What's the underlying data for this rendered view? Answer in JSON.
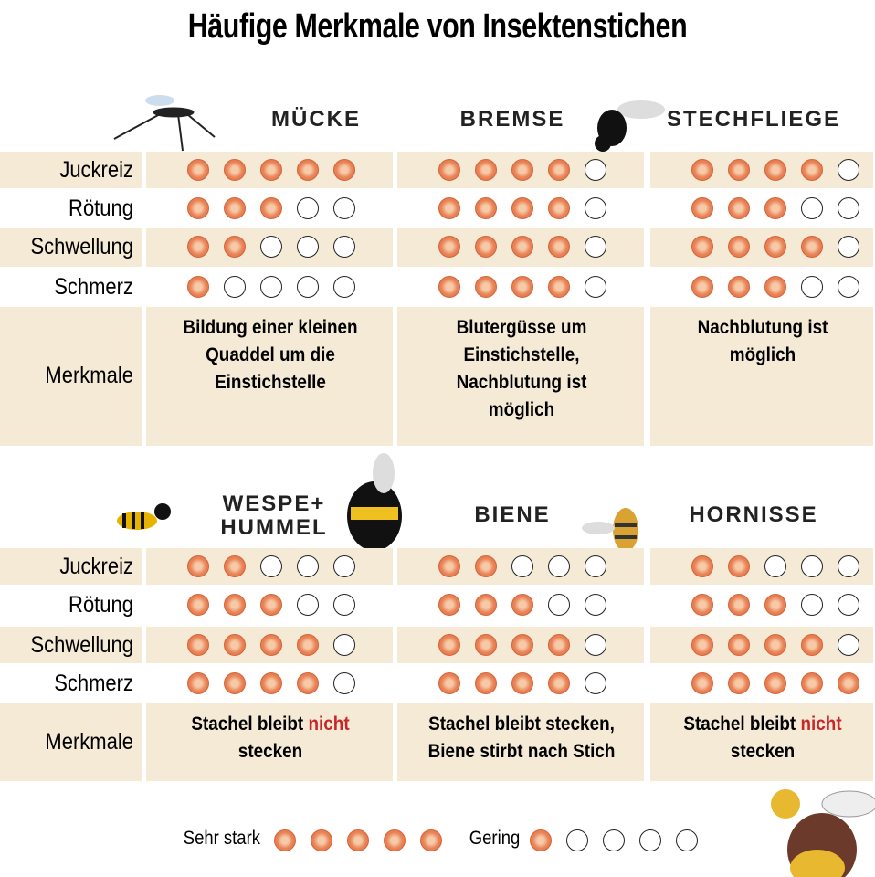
{
  "title": "Häufige Merkmale von Insektenstichen",
  "sections": [
    {
      "insects": [
        "MÜCKE",
        "BREMSE",
        "STECHFLIEGE"
      ],
      "rows": [
        {
          "label": "Juckreiz",
          "ratings": [
            5,
            4,
            4
          ]
        },
        {
          "label": "Rötung",
          "ratings": [
            3,
            4,
            3
          ]
        },
        {
          "label": "Schwellung",
          "ratings": [
            2,
            4,
            4
          ]
        },
        {
          "label": "Schmerz",
          "ratings": [
            1,
            4,
            3
          ]
        }
      ],
      "notes": {
        "label": "Merkmale",
        "texts": [
          [
            "Bildung einer kleinen Quaddel um die Einstichstelle"
          ],
          [
            "Blutergüsse um Einstichstelle, Nachblutung ist möglich"
          ],
          [
            "Nachblutung ist möglich"
          ]
        ]
      }
    },
    {
      "insects": [
        "WESPE+ HUMMEL",
        "BIENE",
        "HORNISSE"
      ],
      "rows": [
        {
          "label": "Juckreiz",
          "ratings": [
            2,
            2,
            2
          ]
        },
        {
          "label": "Rötung",
          "ratings": [
            3,
            3,
            3
          ]
        },
        {
          "label": "Schwellung",
          "ratings": [
            4,
            4,
            4
          ]
        },
        {
          "label": "Schmerz",
          "ratings": [
            4,
            4,
            5
          ]
        }
      ],
      "notes": {
        "label": "Merkmale",
        "texts": [
          [
            "Stachel bleibt ",
            "nicht",
            " stecken"
          ],
          [
            "Stachel bleibt stecken, Biene stirbt nach Stich"
          ],
          [
            "Stachel bleibt ",
            "nicht",
            " stecken"
          ]
        ]
      }
    }
  ],
  "legend": [
    {
      "label": "Sehr stark",
      "rating": 5
    },
    {
      "label": "Gering",
      "rating": 1
    }
  ]
}
